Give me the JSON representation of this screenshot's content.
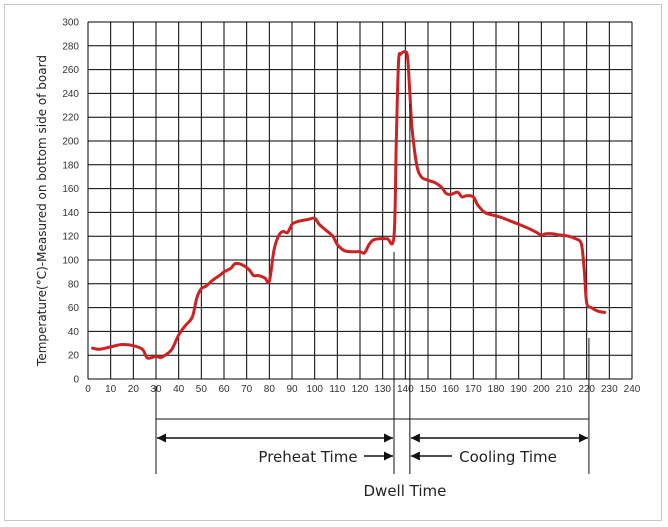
{
  "chart_data": {
    "type": "line",
    "title": "",
    "xlabel": "",
    "ylabel": "Temperature(°C)-Measured on bottom side of board",
    "xlim": [
      0,
      240
    ],
    "ylim": [
      0,
      300
    ],
    "x_ticks": [
      0,
      10,
      20,
      30,
      40,
      50,
      60,
      70,
      80,
      90,
      100,
      110,
      120,
      130,
      140,
      150,
      160,
      170,
      180,
      190,
      200,
      210,
      220,
      230,
      240
    ],
    "y_ticks": [
      0,
      20,
      40,
      60,
      80,
      100,
      120,
      140,
      160,
      180,
      200,
      220,
      240,
      260,
      280,
      300
    ],
    "grid": true,
    "line_color": "#cc2222",
    "series": [
      {
        "x": [
          2,
          5,
          10,
          15,
          20,
          24,
          26,
          28,
          30,
          32,
          34,
          37,
          40,
          43,
          46,
          48,
          50,
          52,
          55,
          58,
          60,
          63,
          65,
          68,
          71,
          73,
          75,
          78,
          80,
          82,
          84,
          86,
          88,
          90,
          92,
          94,
          97,
          100,
          102,
          105,
          108,
          110,
          113,
          116,
          120,
          122,
          124,
          126,
          129,
          132,
          135,
          136,
          137,
          138,
          140,
          141,
          142,
          143,
          145,
          147,
          150,
          153,
          156,
          158,
          160,
          163,
          165,
          167,
          170,
          172,
          175,
          178,
          182,
          186,
          190,
          195,
          198,
          200,
          202,
          205,
          208,
          212,
          215,
          217,
          218,
          219,
          220,
          222,
          225,
          228
        ],
        "y": [
          26,
          25,
          27,
          29,
          28,
          25,
          18,
          18,
          19,
          18,
          20,
          25,
          37,
          45,
          52,
          68,
          76,
          78,
          83,
          87,
          90,
          93,
          97,
          96,
          92,
          87,
          87,
          85,
          82,
          108,
          120,
          124,
          123,
          130,
          132,
          133,
          134,
          135,
          130,
          125,
          120,
          113,
          108,
          107,
          107,
          106,
          113,
          117,
          118,
          118,
          120,
          200,
          266,
          273,
          275,
          270,
          240,
          210,
          180,
          170,
          167,
          165,
          161,
          156,
          155,
          157,
          153,
          154,
          153,
          146,
          140,
          138,
          136,
          133,
          130,
          126,
          123,
          121,
          122,
          122,
          121,
          120,
          118,
          116,
          110,
          90,
          64,
          60,
          57,
          56
        ]
      }
    ],
    "annotations": {
      "preheat": "Preheat Time",
      "dwell": "Dwell Time",
      "cooling": "Cooling Time",
      "preheat_range": [
        30,
        135
      ],
      "dwell_range": [
        135,
        142
      ],
      "cooling_range": [
        142,
        221
      ]
    }
  }
}
